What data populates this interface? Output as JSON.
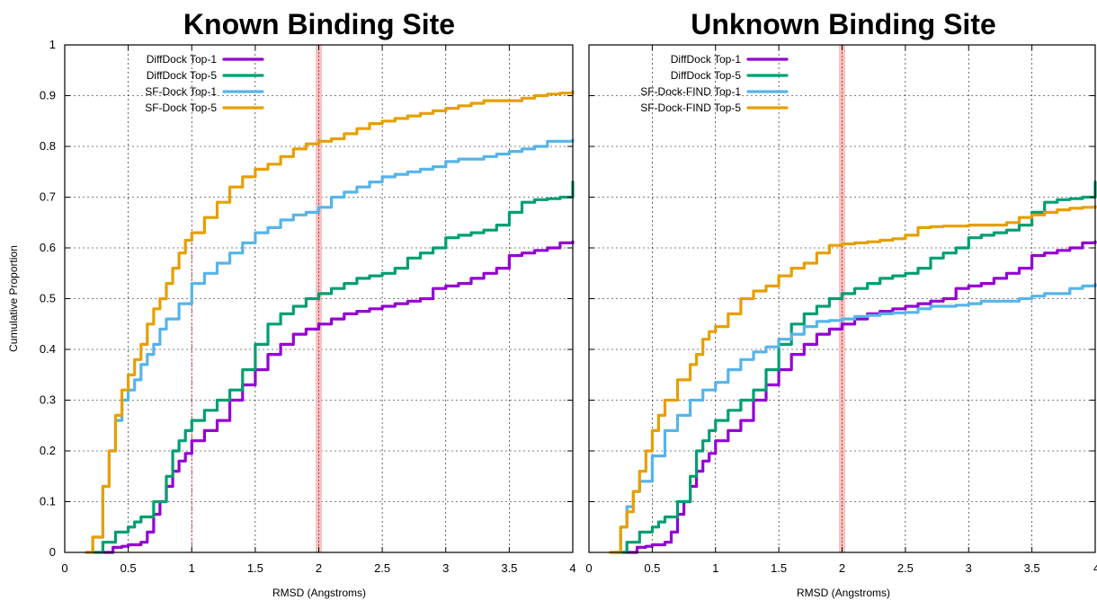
{
  "chart_data": [
    {
      "type": "line",
      "title": "Known Binding Site",
      "xlabel": "RMSD (Angstroms)",
      "ylabel": "Cumulative Proportion",
      "xlim": [
        0,
        4
      ],
      "ylim": [
        0,
        1
      ],
      "xticks": [
        "0",
        "0.5",
        "1",
        "1.5",
        "2",
        "2.5",
        "3",
        "3.5",
        "4"
      ],
      "yticks": [
        "0",
        "0.1",
        "0.2",
        "0.3",
        "0.4",
        "0.5",
        "0.6",
        "0.7",
        "0.8",
        "0.9",
        "1"
      ],
      "grid": true,
      "legend_position": "top-left",
      "reference_lines_x": [
        1,
        2
      ],
      "series": [
        {
          "name": "DiffDock Top-1",
          "color": "#9400d3",
          "x": [
            0.3,
            0.38,
            0.45,
            0.5,
            0.55,
            0.6,
            0.65,
            0.7,
            0.75,
            0.8,
            0.85,
            0.9,
            0.95,
            1.0,
            1.1,
            1.2,
            1.3,
            1.4,
            1.5,
            1.6,
            1.7,
            1.8,
            1.9,
            2.0,
            2.1,
            2.2,
            2.3,
            2.4,
            2.5,
            2.6,
            2.7,
            2.8,
            2.9,
            3.0,
            3.1,
            3.2,
            3.3,
            3.4,
            3.5,
            3.6,
            3.7,
            3.8,
            3.9,
            4.0
          ],
          "y": [
            0,
            0.01,
            0.012,
            0.015,
            0.015,
            0.02,
            0.04,
            0.075,
            0.1,
            0.13,
            0.16,
            0.18,
            0.195,
            0.22,
            0.24,
            0.26,
            0.3,
            0.33,
            0.36,
            0.39,
            0.41,
            0.43,
            0.44,
            0.45,
            0.46,
            0.47,
            0.475,
            0.48,
            0.485,
            0.49,
            0.495,
            0.5,
            0.52,
            0.525,
            0.53,
            0.54,
            0.55,
            0.56,
            0.585,
            0.59,
            0.595,
            0.6,
            0.61,
            0.612
          ]
        },
        {
          "name": "DiffDock Top-5",
          "color": "#009e73",
          "x": [
            0.22,
            0.3,
            0.4,
            0.5,
            0.55,
            0.6,
            0.7,
            0.8,
            0.85,
            0.9,
            0.95,
            1.0,
            1.1,
            1.2,
            1.3,
            1.4,
            1.5,
            1.6,
            1.7,
            1.8,
            1.9,
            2.0,
            2.1,
            2.2,
            2.3,
            2.4,
            2.5,
            2.6,
            2.7,
            2.8,
            2.9,
            3.0,
            3.1,
            3.2,
            3.3,
            3.4,
            3.5,
            3.6,
            3.7,
            3.8,
            3.9,
            4.0
          ],
          "y": [
            0,
            0.02,
            0.04,
            0.05,
            0.06,
            0.07,
            0.1,
            0.15,
            0.2,
            0.22,
            0.24,
            0.26,
            0.28,
            0.3,
            0.32,
            0.36,
            0.41,
            0.45,
            0.47,
            0.485,
            0.5,
            0.51,
            0.52,
            0.53,
            0.54,
            0.545,
            0.55,
            0.56,
            0.58,
            0.59,
            0.6,
            0.62,
            0.625,
            0.63,
            0.635,
            0.645,
            0.67,
            0.69,
            0.695,
            0.697,
            0.7,
            0.73
          ]
        },
        {
          "name": "SF-Dock Top-1",
          "color": "#56b4e9",
          "x": [
            0.17,
            0.22,
            0.3,
            0.35,
            0.4,
            0.45,
            0.5,
            0.55,
            0.6,
            0.65,
            0.7,
            0.75,
            0.8,
            0.9,
            1.0,
            1.1,
            1.2,
            1.3,
            1.4,
            1.5,
            1.6,
            1.7,
            1.8,
            1.9,
            2.0,
            2.1,
            2.2,
            2.3,
            2.4,
            2.5,
            2.6,
            2.7,
            2.8,
            2.9,
            3.0,
            3.1,
            3.2,
            3.3,
            3.4,
            3.5,
            3.6,
            3.7,
            3.8,
            3.9,
            4.0
          ],
          "y": [
            0,
            0.03,
            0.13,
            0.2,
            0.26,
            0.3,
            0.32,
            0.34,
            0.37,
            0.39,
            0.41,
            0.44,
            0.46,
            0.49,
            0.53,
            0.55,
            0.57,
            0.59,
            0.61,
            0.63,
            0.64,
            0.655,
            0.665,
            0.67,
            0.68,
            0.7,
            0.71,
            0.72,
            0.73,
            0.74,
            0.745,
            0.75,
            0.755,
            0.76,
            0.77,
            0.775,
            0.775,
            0.78,
            0.785,
            0.79,
            0.795,
            0.8,
            0.81,
            0.81,
            0.812
          ]
        },
        {
          "name": "SF-Dock Top-5",
          "color": "#e69f00",
          "x": [
            0.17,
            0.22,
            0.3,
            0.35,
            0.4,
            0.45,
            0.5,
            0.55,
            0.6,
            0.65,
            0.7,
            0.75,
            0.8,
            0.85,
            0.9,
            0.95,
            1.0,
            1.1,
            1.2,
            1.3,
            1.4,
            1.5,
            1.6,
            1.7,
            1.8,
            1.9,
            2.0,
            2.1,
            2.2,
            2.3,
            2.4,
            2.5,
            2.6,
            2.7,
            2.8,
            2.9,
            3.0,
            3.1,
            3.2,
            3.3,
            3.4,
            3.5,
            3.6,
            3.7,
            3.8,
            3.9,
            4.0
          ],
          "y": [
            0,
            0.03,
            0.13,
            0.2,
            0.27,
            0.32,
            0.35,
            0.38,
            0.41,
            0.45,
            0.48,
            0.5,
            0.53,
            0.56,
            0.59,
            0.615,
            0.63,
            0.66,
            0.69,
            0.72,
            0.74,
            0.755,
            0.765,
            0.78,
            0.795,
            0.805,
            0.81,
            0.815,
            0.825,
            0.835,
            0.845,
            0.85,
            0.855,
            0.86,
            0.865,
            0.87,
            0.875,
            0.88,
            0.885,
            0.89,
            0.89,
            0.89,
            0.895,
            0.9,
            0.903,
            0.905,
            0.908
          ]
        }
      ]
    },
    {
      "type": "line",
      "title": "Unknown Binding Site",
      "xlabel": "RMSD (Angstroms)",
      "ylabel": "",
      "xlim": [
        0,
        4
      ],
      "ylim": [
        0,
        1
      ],
      "xticks": [
        "0",
        "0.5",
        "1",
        "1.5",
        "2",
        "2.5",
        "3",
        "3.5",
        "4"
      ],
      "yticks": [],
      "grid": true,
      "legend_position": "top-left",
      "reference_lines_x": [
        2
      ],
      "series": [
        {
          "name": "DiffDock Top-1",
          "color": "#9400d3",
          "x": [
            0.3,
            0.38,
            0.45,
            0.5,
            0.55,
            0.6,
            0.65,
            0.7,
            0.75,
            0.8,
            0.85,
            0.9,
            0.95,
            1.0,
            1.1,
            1.2,
            1.3,
            1.4,
            1.5,
            1.6,
            1.7,
            1.8,
            1.9,
            2.0,
            2.1,
            2.2,
            2.3,
            2.4,
            2.5,
            2.6,
            2.7,
            2.8,
            2.9,
            3.0,
            3.1,
            3.2,
            3.3,
            3.4,
            3.5,
            3.6,
            3.7,
            3.8,
            3.9,
            4.0
          ],
          "y": [
            0,
            0.01,
            0.012,
            0.015,
            0.015,
            0.02,
            0.04,
            0.075,
            0.1,
            0.13,
            0.16,
            0.18,
            0.195,
            0.22,
            0.24,
            0.26,
            0.3,
            0.33,
            0.36,
            0.39,
            0.41,
            0.43,
            0.44,
            0.45,
            0.46,
            0.47,
            0.475,
            0.48,
            0.485,
            0.49,
            0.495,
            0.5,
            0.52,
            0.525,
            0.53,
            0.54,
            0.55,
            0.56,
            0.585,
            0.59,
            0.595,
            0.6,
            0.61,
            0.612
          ]
        },
        {
          "name": "DiffDock Top-5",
          "color": "#009e73",
          "x": [
            0.22,
            0.3,
            0.4,
            0.5,
            0.55,
            0.6,
            0.7,
            0.8,
            0.85,
            0.9,
            0.95,
            1.0,
            1.1,
            1.2,
            1.3,
            1.4,
            1.5,
            1.6,
            1.7,
            1.8,
            1.9,
            2.0,
            2.1,
            2.2,
            2.3,
            2.4,
            2.5,
            2.6,
            2.7,
            2.8,
            2.9,
            3.0,
            3.1,
            3.2,
            3.3,
            3.4,
            3.5,
            3.6,
            3.7,
            3.8,
            3.9,
            4.0
          ],
          "y": [
            0,
            0.02,
            0.04,
            0.05,
            0.06,
            0.07,
            0.1,
            0.15,
            0.2,
            0.22,
            0.24,
            0.26,
            0.28,
            0.3,
            0.32,
            0.36,
            0.41,
            0.45,
            0.47,
            0.485,
            0.5,
            0.51,
            0.52,
            0.53,
            0.54,
            0.545,
            0.55,
            0.56,
            0.58,
            0.59,
            0.6,
            0.62,
            0.625,
            0.63,
            0.635,
            0.645,
            0.67,
            0.69,
            0.695,
            0.697,
            0.7,
            0.73
          ]
        },
        {
          "name": "SF-Dock-FIND Top-1",
          "color": "#56b4e9",
          "x": [
            0.17,
            0.25,
            0.3,
            0.35,
            0.4,
            0.5,
            0.6,
            0.7,
            0.8,
            0.9,
            1.0,
            1.1,
            1.2,
            1.3,
            1.4,
            1.5,
            1.6,
            1.7,
            1.8,
            1.9,
            2.0,
            2.1,
            2.2,
            2.3,
            2.4,
            2.5,
            2.6,
            2.7,
            2.8,
            2.9,
            3.0,
            3.1,
            3.2,
            3.3,
            3.4,
            3.5,
            3.6,
            3.7,
            3.8,
            3.9,
            4.0
          ],
          "y": [
            0,
            0.05,
            0.09,
            0.12,
            0.14,
            0.19,
            0.24,
            0.27,
            0.3,
            0.32,
            0.335,
            0.36,
            0.38,
            0.395,
            0.405,
            0.42,
            0.43,
            0.445,
            0.455,
            0.457,
            0.46,
            0.465,
            0.467,
            0.47,
            0.472,
            0.473,
            0.48,
            0.485,
            0.485,
            0.487,
            0.49,
            0.495,
            0.495,
            0.495,
            0.5,
            0.505,
            0.51,
            0.51,
            0.52,
            0.525,
            0.528
          ]
        },
        {
          "name": "SF-Dock-FIND Top-5",
          "color": "#e69f00",
          "x": [
            0.17,
            0.25,
            0.3,
            0.35,
            0.4,
            0.45,
            0.5,
            0.55,
            0.6,
            0.7,
            0.8,
            0.85,
            0.9,
            0.95,
            1.0,
            1.1,
            1.2,
            1.3,
            1.4,
            1.5,
            1.6,
            1.7,
            1.8,
            1.9,
            2.0,
            2.1,
            2.2,
            2.3,
            2.4,
            2.5,
            2.6,
            2.7,
            2.8,
            2.9,
            3.0,
            3.1,
            3.2,
            3.3,
            3.4,
            3.5,
            3.6,
            3.7,
            3.8,
            3.9,
            4.0
          ],
          "y": [
            0,
            0.05,
            0.08,
            0.12,
            0.16,
            0.2,
            0.24,
            0.27,
            0.3,
            0.34,
            0.37,
            0.39,
            0.42,
            0.435,
            0.445,
            0.47,
            0.5,
            0.515,
            0.525,
            0.545,
            0.56,
            0.57,
            0.59,
            0.605,
            0.608,
            0.61,
            0.612,
            0.615,
            0.618,
            0.625,
            0.64,
            0.642,
            0.643,
            0.643,
            0.645,
            0.645,
            0.645,
            0.65,
            0.66,
            0.665,
            0.67,
            0.675,
            0.678,
            0.68,
            0.682
          ]
        }
      ]
    }
  ]
}
